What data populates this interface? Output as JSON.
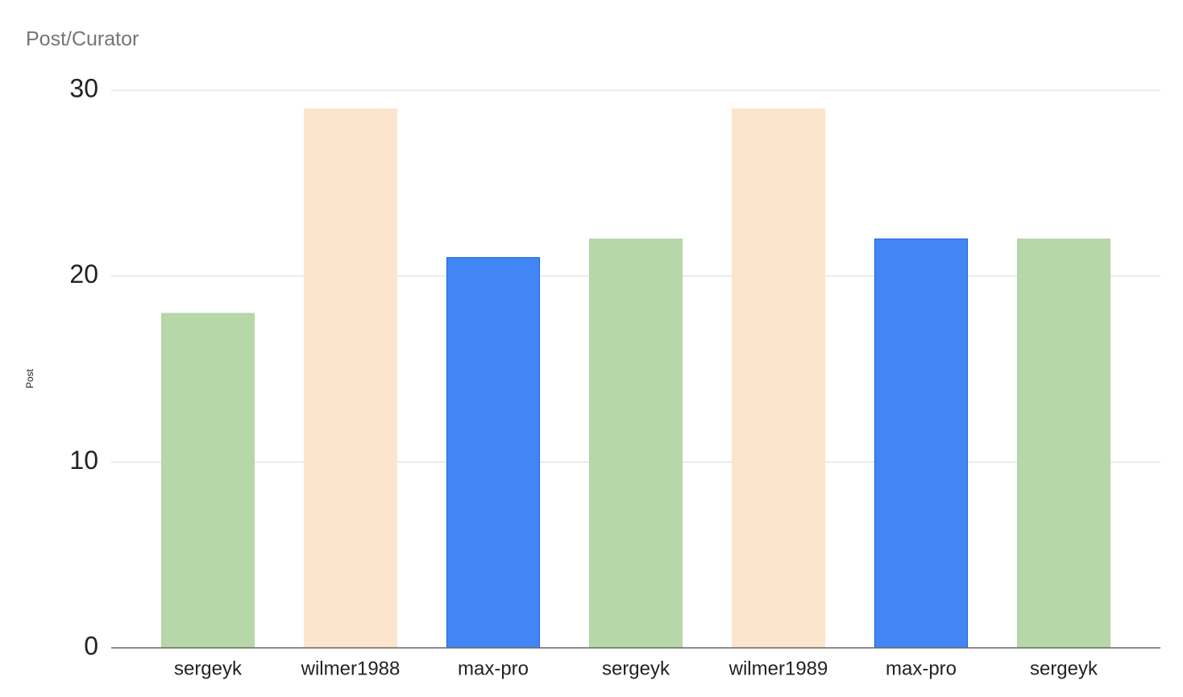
{
  "chart_data": {
    "type": "bar",
    "title": "Post/Curator",
    "y_label": "Post",
    "categories": [
      "sergeyk",
      "wilmer1988",
      "max-pro",
      "sergeyk",
      "wilmer1989",
      "max-pro",
      "sergeyk"
    ],
    "values": [
      18,
      29,
      21,
      22,
      29,
      22,
      22
    ],
    "colors": [
      "#b6d7a8",
      "#fce5cd",
      "#4285f4",
      "#b6d7a8",
      "#fce5cd",
      "#4285f4",
      "#b6d7a8"
    ],
    "ylim": [
      0,
      30
    ],
    "yticks": [
      0,
      10,
      20,
      30
    ],
    "grid": true
  }
}
